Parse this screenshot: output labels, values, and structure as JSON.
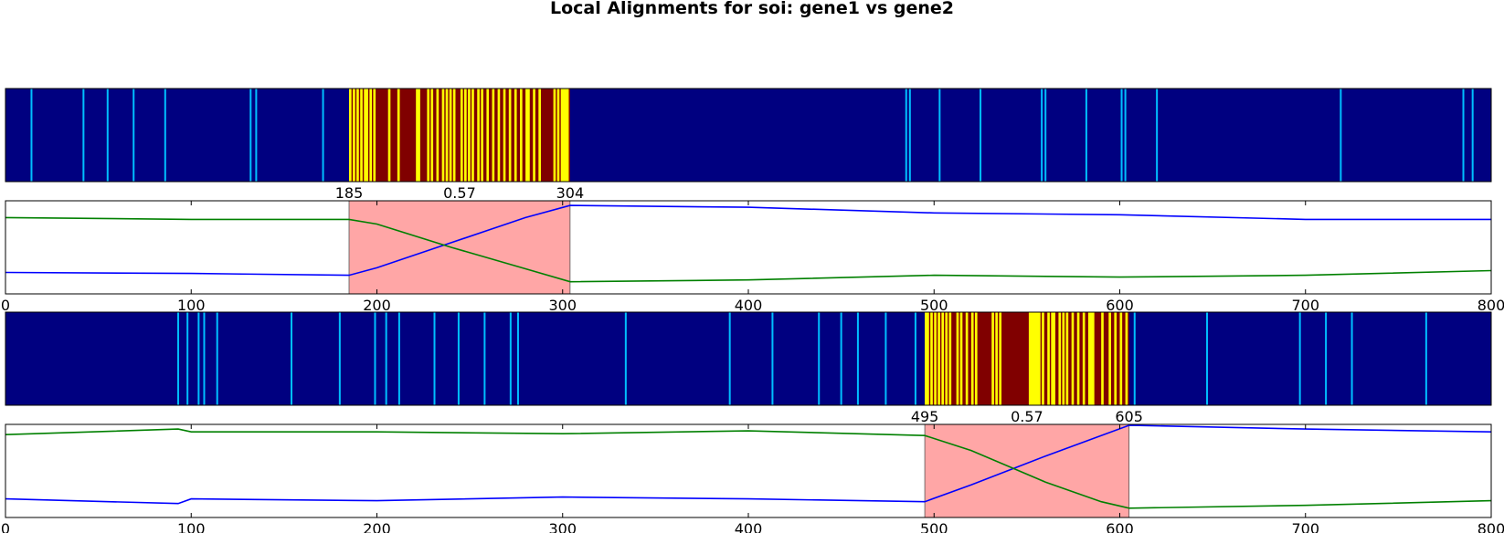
{
  "title": "Local Alignments for soi: gene1 vs gene2",
  "colors": {
    "background_band": "#000080",
    "mismatch_line": "#00bfff",
    "region_dark": "#800000",
    "region_light": "#ffff00",
    "highlight_fill": "#ffa6a6",
    "curve_blue": "#0000ff",
    "curve_green": "#008000"
  },
  "chart_data": [
    {
      "type": "barcode",
      "xlim": [
        0,
        800
      ],
      "mismatch_positions": [
        14,
        42,
        55,
        69,
        86,
        132,
        135,
        171,
        485,
        487,
        503,
        525,
        558,
        560,
        582,
        601,
        603,
        620,
        719,
        785,
        790
      ],
      "region": {
        "start": 185,
        "end": 304,
        "start_label": "185",
        "mid_label": "0.57",
        "end_label": "304",
        "light_positions": [
          185,
          187,
          189,
          191,
          193,
          194,
          196,
          198,
          206,
          211,
          221,
          222,
          227,
          229,
          232,
          235,
          237,
          239,
          241,
          245,
          247,
          249,
          251,
          254,
          256,
          259,
          262,
          265,
          268,
          271,
          274,
          277,
          280,
          281,
          284,
          287,
          295,
          297,
          299,
          300,
          301,
          302
        ]
      }
    },
    {
      "type": "line",
      "xlim": [
        0,
        800
      ],
      "ylim": [
        0,
        1
      ],
      "xticks": [
        "0",
        "100",
        "200",
        "300",
        "400",
        "500",
        "600",
        "700",
        "800"
      ],
      "highlight": [
        185,
        304
      ],
      "series": [
        {
          "color": "blue",
          "points": [
            [
              0,
              0.23
            ],
            [
              100,
              0.22
            ],
            [
              185,
              0.2
            ],
            [
              200,
              0.28
            ],
            [
              240,
              0.55
            ],
            [
              280,
              0.82
            ],
            [
              304,
              0.95
            ],
            [
              400,
              0.93
            ],
            [
              500,
              0.87
            ],
            [
              600,
              0.85
            ],
            [
              700,
              0.8
            ],
            [
              800,
              0.8
            ]
          ]
        },
        {
          "color": "green",
          "points": [
            [
              0,
              0.82
            ],
            [
              100,
              0.8
            ],
            [
              185,
              0.8
            ],
            [
              200,
              0.75
            ],
            [
              240,
              0.5
            ],
            [
              280,
              0.27
            ],
            [
              304,
              0.13
            ],
            [
              400,
              0.15
            ],
            [
              500,
              0.2
            ],
            [
              600,
              0.18
            ],
            [
              700,
              0.2
            ],
            [
              800,
              0.25
            ]
          ]
        }
      ]
    },
    {
      "type": "barcode",
      "xlim": [
        0,
        800
      ],
      "mismatch_positions": [
        93,
        98,
        104,
        107,
        114,
        154,
        180,
        199,
        205,
        212,
        231,
        244,
        258,
        272,
        276,
        334,
        390,
        413,
        438,
        450,
        459,
        474,
        490
      ],
      "region": {
        "start": 495,
        "end": 605,
        "start_label": "495",
        "mid_label": "0.57",
        "end_label": "605",
        "light_positions": [
          495,
          496,
          498,
          500,
          502,
          504,
          506,
          508,
          512,
          514,
          517,
          520,
          522,
          531,
          533,
          535,
          551,
          552,
          553,
          554,
          555,
          556,
          558,
          561,
          563,
          564,
          567,
          569,
          571,
          574,
          577,
          580,
          583,
          584,
          585,
          590,
          594,
          597,
          600,
          603
        ]
      },
      "extra_mismatch": [
        608,
        647,
        697,
        711,
        725,
        765
      ]
    },
    {
      "type": "line",
      "xlim": [
        0,
        800
      ],
      "ylim": [
        0,
        1
      ],
      "xticks": [
        "0",
        "100",
        "200",
        "300",
        "400",
        "500",
        "600",
        "700",
        "800"
      ],
      "highlight": [
        495,
        605
      ],
      "series": [
        {
          "color": "blue",
          "points": [
            [
              0,
              0.2
            ],
            [
              93,
              0.15
            ],
            [
              100,
              0.2
            ],
            [
              200,
              0.18
            ],
            [
              300,
              0.22
            ],
            [
              400,
              0.2
            ],
            [
              495,
              0.17
            ],
            [
              520,
              0.35
            ],
            [
              560,
              0.66
            ],
            [
              590,
              0.88
            ],
            [
              605,
              0.99
            ],
            [
              700,
              0.95
            ],
            [
              800,
              0.92
            ]
          ]
        },
        {
          "color": "green",
          "points": [
            [
              0,
              0.89
            ],
            [
              93,
              0.95
            ],
            [
              100,
              0.92
            ],
            [
              200,
              0.92
            ],
            [
              300,
              0.9
            ],
            [
              400,
              0.93
            ],
            [
              495,
              0.88
            ],
            [
              520,
              0.72
            ],
            [
              560,
              0.38
            ],
            [
              590,
              0.17
            ],
            [
              605,
              0.1
            ],
            [
              700,
              0.13
            ],
            [
              800,
              0.18
            ]
          ]
        }
      ]
    }
  ]
}
